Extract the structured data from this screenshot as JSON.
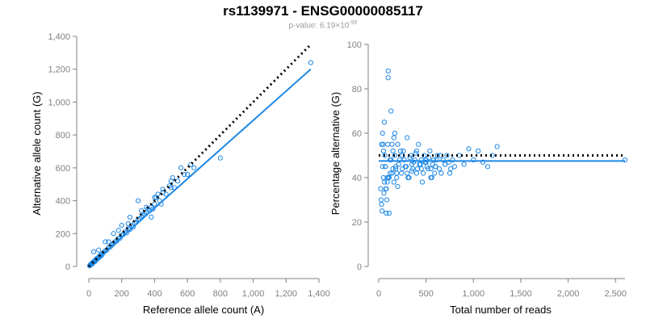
{
  "title": "rs1139971 - ENSG00000085117",
  "pvalue": {
    "prefix": "p-value: ",
    "mantissa": "6.19×10",
    "exponent": "-99"
  },
  "colors": {
    "points": "#1e88e5",
    "fit": "#1e88e5",
    "reference": "#000000",
    "axis": "#808080"
  },
  "chart_data": [
    {
      "type": "scatter",
      "xlabel": "Reference allele count (A)",
      "ylabel": "Alternative allele count (G)",
      "xlim": [
        0,
        1400
      ],
      "ylim": [
        0,
        1400
      ],
      "xticks": [
        0,
        200,
        400,
        600,
        800,
        1000,
        1200,
        1400
      ],
      "yticks": [
        0,
        200,
        400,
        600,
        800,
        1000,
        1200,
        1400
      ],
      "xtick_labels": [
        "0",
        "200",
        "400",
        "600",
        "800",
        "1,000",
        "1,200",
        "1,400"
      ],
      "ytick_labels": [
        "0",
        "200",
        "400",
        "600",
        "800",
        "1,000",
        "1,200",
        "1,400"
      ],
      "series": [
        {
          "x": [
            5,
            8,
            10,
            12,
            15,
            18,
            20,
            22,
            25,
            28,
            30,
            35,
            40,
            45,
            50,
            55,
            60,
            65,
            70,
            75,
            80,
            90,
            100,
            110,
            120,
            130,
            140,
            150,
            160,
            170,
            180,
            190,
            200,
            210,
            220,
            230,
            240,
            250,
            260,
            270,
            280,
            290,
            300,
            310,
            320,
            330,
            340,
            350,
            360,
            370,
            380,
            390,
            400,
            410,
            420,
            430,
            450,
            470,
            490,
            500,
            510,
            520,
            540,
            560,
            580,
            600,
            620,
            640,
            800,
            1350,
            30,
            60,
            100,
            150,
            200,
            250,
            300,
            350,
            400,
            450,
            500,
            120,
            180,
            240,
            320,
            380,
            440
          ],
          "y": [
            4,
            8,
            12,
            10,
            16,
            14,
            22,
            18,
            26,
            24,
            30,
            28,
            40,
            38,
            50,
            48,
            55,
            64,
            60,
            72,
            70,
            85,
            95,
            100,
            115,
            118,
            130,
            140,
            150,
            155,
            170,
            172,
            190,
            195,
            210,
            205,
            230,
            225,
            250,
            240,
            265,
            270,
            285,
            290,
            300,
            310,
            320,
            330,
            350,
            340,
            360,
            350,
            380,
            420,
            440,
            400,
            470,
            440,
            490,
            520,
            540,
            480,
            520,
            600,
            560,
            560,
            620,
            600,
            660,
            1240,
            90,
            100,
            150,
            200,
            250,
            300,
            400,
            360,
            420,
            450,
            480,
            150,
            220,
            260,
            340,
            300,
            380
          ]
        },
        {
          "type": "line",
          "name": "fit",
          "x": [
            0,
            1350
          ],
          "y": [
            0,
            1200
          ]
        },
        {
          "type": "line",
          "name": "reference",
          "dashed": true,
          "x": [
            0,
            1350
          ],
          "y": [
            0,
            1350
          ]
        }
      ]
    },
    {
      "type": "scatter",
      "xlabel": "Total number of reads",
      "ylabel": "Percentage alternative (G)",
      "xlim": [
        0,
        2600
      ],
      "ylim": [
        0,
        100
      ],
      "xticks": [
        0,
        500,
        1000,
        1500,
        2000,
        2500
      ],
      "yticks": [
        0,
        20,
        40,
        60,
        80,
        100
      ],
      "xtick_labels": [
        "0",
        "500",
        "1,000",
        "1,500",
        "2,000",
        "2,500"
      ],
      "ytick_labels": [
        "0",
        "20",
        "40",
        "60",
        "80",
        "100"
      ],
      "series": [
        {
          "x": [
            20,
            25,
            30,
            35,
            40,
            45,
            50,
            55,
            60,
            65,
            70,
            75,
            80,
            85,
            90,
            95,
            100,
            100,
            110,
            120,
            130,
            140,
            150,
            160,
            170,
            180,
            190,
            200,
            220,
            240,
            260,
            280,
            300,
            320,
            340,
            360,
            380,
            400,
            420,
            440,
            460,
            480,
            500,
            520,
            540,
            560,
            580,
            600,
            620,
            640,
            660,
            680,
            700,
            720,
            740,
            760,
            780,
            800,
            850,
            900,
            950,
            1000,
            1050,
            1100,
            1150,
            1200,
            1250,
            2600,
            40,
            60,
            80,
            100,
            120,
            140,
            160,
            180,
            200,
            250,
            300,
            350,
            400,
            450,
            500,
            550,
            600,
            650,
            700,
            750,
            30,
            50,
            70,
            90,
            110,
            130,
            150,
            170,
            190,
            210,
            230,
            250,
            270,
            290,
            310,
            330,
            350,
            370,
            390,
            410,
            430,
            450,
            470,
            490,
            510,
            530,
            550,
            570,
            590,
            610
          ],
          "y": [
            35,
            30,
            28,
            25,
            60,
            55,
            40,
            33,
            65,
            50,
            45,
            35,
            24,
            30,
            40,
            55,
            85,
            88,
            24,
            48,
            70,
            42,
            52,
            38,
            60,
            45,
            40,
            55,
            48,
            42,
            52,
            45,
            58,
            40,
            50,
            44,
            48,
            42,
            55,
            46,
            38,
            50,
            47,
            44,
            52,
            40,
            48,
            45,
            50,
            44,
            42,
            48,
            46,
            50,
            47,
            44,
            48,
            45,
            50,
            46,
            53,
            48,
            52,
            47,
            45,
            50,
            54,
            48,
            45,
            38,
            35,
            40,
            42,
            55,
            58,
            44,
            36,
            50,
            42,
            46,
            52,
            44,
            48,
            40,
            45,
            50,
            46,
            42,
            55,
            52,
            45,
            38,
            40,
            48,
            44,
            50,
            42,
            46,
            52,
            44,
            48,
            45,
            40,
            49,
            43,
            47,
            51,
            44,
            46,
            48,
            42,
            47,
            45,
            49,
            44,
            46,
            42,
            48
          ],
          "__note": ""
        },
        {
          "type": "line",
          "name": "fit",
          "x": [
            0,
            2600
          ],
          "y": [
            47.5,
            47.5
          ]
        },
        {
          "type": "line",
          "name": "reference",
          "dashed": true,
          "x": [
            0,
            2600
          ],
          "y": [
            50,
            50
          ]
        }
      ]
    }
  ]
}
